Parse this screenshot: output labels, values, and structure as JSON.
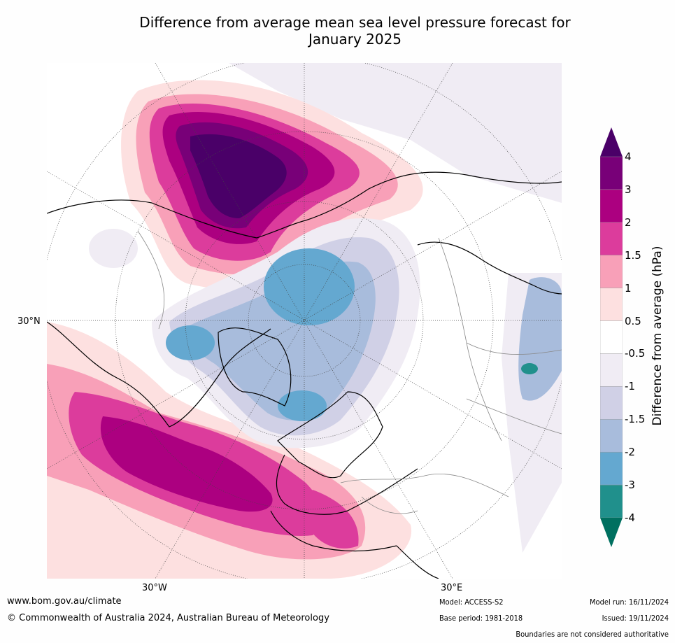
{
  "title_line1": "Difference from average mean sea level pressure forecast for",
  "title_line2": "January 2025",
  "lat_labels": {
    "left": "30°N"
  },
  "lon_labels": {
    "left": "30°W",
    "right": "30°E"
  },
  "colorbar": {
    "label": "Difference from average (hPa)",
    "ticks": [
      "4",
      "3",
      "2",
      "1.5",
      "1",
      "0.5",
      "-0.5",
      "-1",
      "-1.5",
      "-2",
      "-3",
      "-4"
    ],
    "colors": [
      "#4a0068",
      "#780078",
      "#ac0080",
      "#dc3c9c",
      "#f8a0b8",
      "#fde0e0",
      "#ffffff",
      "#f0ecf4",
      "#d0d0e6",
      "#a8bcdc",
      "#64a8d0",
      "#20908c",
      "#007060"
    ]
  },
  "footer": {
    "url": "www.bom.gov.au/climate",
    "copyright": "© Commonwealth of Australia 2024, Australian Bureau of Meteorology",
    "model": "Model: ACCESS-S2",
    "base_period": "Base period: 1981-2018",
    "model_run": "Model run: 16/11/2024",
    "issued": "Issued: 19/11/2024",
    "disclaimer": "Boundaries are not considered authoritative"
  }
}
